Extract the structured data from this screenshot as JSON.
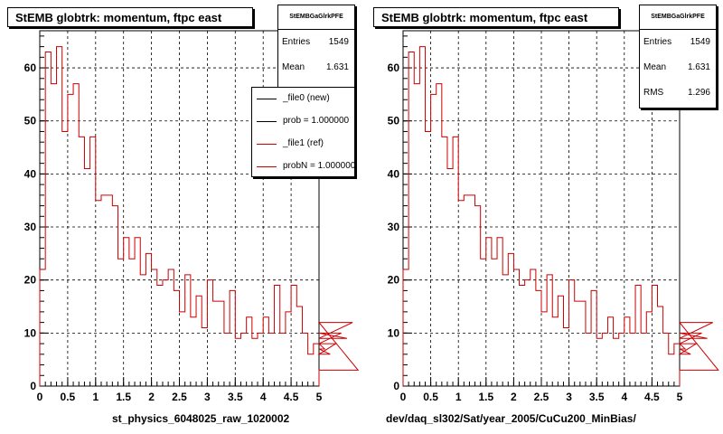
{
  "panels": [
    {
      "title": "StEMB globtrk: momentum, ftpc east",
      "stats": {
        "name": "StEMBGaGlrkPFE",
        "rows": [
          {
            "key": "Entries",
            "value": "1549"
          },
          {
            "key": "Mean",
            "value": "1.631"
          }
        ]
      },
      "legend": [
        {
          "label": "_file0 (new)",
          "color": "#000000"
        },
        {
          "label": "prob = 1.000000",
          "color": "#000000"
        },
        {
          "label": "_file1 (ref)",
          "color": "#cc0000"
        },
        {
          "label": "probN = 1.000000",
          "color": "#cc0000"
        }
      ],
      "xlabel": "st_physics_6048025_raw_1020002"
    },
    {
      "title": "StEMB globtrk: momentum, ftpc east",
      "stats": {
        "name": "StEMBGaGlrkPFE",
        "rows": [
          {
            "key": "Entries",
            "value": "1549"
          },
          {
            "key": "Mean",
            "value": "1.631"
          },
          {
            "key": "RMS",
            "value": "1.296"
          }
        ]
      },
      "xlabel": "dev/daq_sl302/Sat/year_2005/CuCu200_MinBias/"
    }
  ],
  "chart_data": [
    {
      "type": "histogram",
      "title": "StEMB globtrk: momentum, ftpc east",
      "xlabel": "st_physics_6048025_raw_1020002",
      "xlim": [
        0,
        5
      ],
      "ylim": [
        0,
        67
      ],
      "bin_width": 0.1,
      "grid": true,
      "line_color": "#cc0000",
      "x_ticks": [
        "0",
        "0.5",
        "1",
        "1.5",
        "2",
        "2.5",
        "3",
        "3.5",
        "4",
        "4.5",
        "5"
      ],
      "y_ticks": [
        "0",
        "10",
        "20",
        "30",
        "40",
        "50",
        "60"
      ],
      "values": [
        22,
        63,
        57,
        64,
        48,
        55,
        57,
        47,
        41,
        47,
        35,
        36,
        36,
        34,
        24,
        28,
        24,
        28,
        21,
        25,
        22,
        19,
        20,
        22,
        18,
        14,
        21,
        13,
        17,
        11,
        20,
        16,
        16,
        10,
        18,
        9,
        10,
        13,
        9,
        10,
        13,
        10,
        19,
        10,
        14,
        19,
        15,
        10,
        6,
        8,
        8,
        7,
        6,
        8,
        10,
        9,
        12,
        3
      ],
      "legend_position": "top-right"
    },
    {
      "type": "histogram",
      "title": "StEMB globtrk: momentum, ftpc east",
      "xlabel": "dev/daq_sl302/Sat/year_2005/CuCu200_MinBias/",
      "xlim": [
        0,
        5
      ],
      "ylim": [
        0,
        67
      ],
      "bin_width": 0.1,
      "grid": true,
      "line_color": "#cc0000",
      "x_ticks": [
        "0",
        "0.5",
        "1",
        "1.5",
        "2",
        "2.5",
        "3",
        "3.5",
        "4",
        "4.5",
        "5"
      ],
      "y_ticks": [
        "0",
        "10",
        "20",
        "30",
        "40",
        "50",
        "60"
      ],
      "values": [
        22,
        63,
        57,
        64,
        48,
        55,
        57,
        47,
        41,
        47,
        35,
        36,
        36,
        34,
        24,
        28,
        24,
        28,
        21,
        25,
        22,
        19,
        20,
        22,
        18,
        14,
        21,
        13,
        17,
        11,
        20,
        16,
        16,
        10,
        18,
        9,
        10,
        13,
        9,
        10,
        13,
        10,
        19,
        10,
        14,
        19,
        15,
        10,
        6,
        8,
        8,
        7,
        6,
        8,
        10,
        9,
        12,
        3
      ]
    }
  ]
}
